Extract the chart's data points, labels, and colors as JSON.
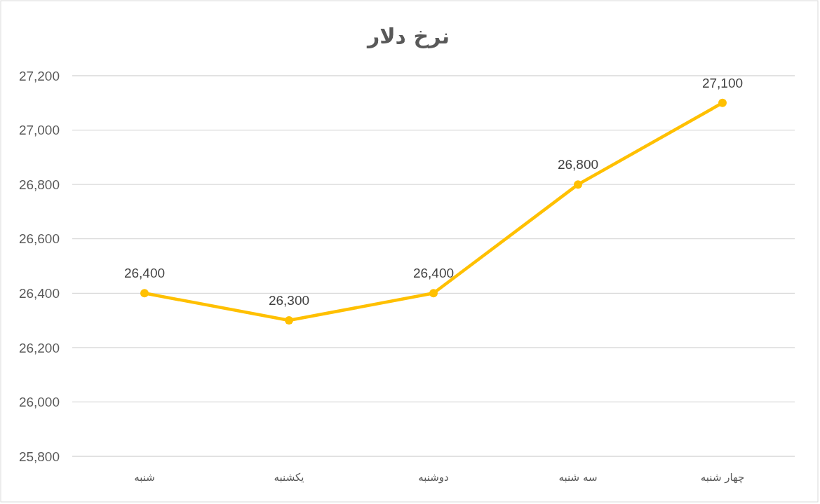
{
  "chart_data": {
    "type": "line",
    "title": "نرخ دلار",
    "categories": [
      "شنبه",
      "یکشنبه",
      "دوشنبه",
      "سه شنبه",
      "چهار شنبه"
    ],
    "series": [
      {
        "color": "#ffc000",
        "values": [
          26400,
          26300,
          26400,
          26800,
          27100
        ],
        "value_labels": [
          "26,400",
          "26,300",
          "26,400",
          "26,800",
          "27,100"
        ]
      }
    ],
    "ylim": [
      25800,
      27200
    ],
    "yticks": [
      {
        "value": 25800,
        "label": "25,800"
      },
      {
        "value": 26000,
        "label": "26,000"
      },
      {
        "value": 26200,
        "label": "26,200"
      },
      {
        "value": 26400,
        "label": "26,400"
      },
      {
        "value": 26600,
        "label": "26,600"
      },
      {
        "value": 26800,
        "label": "26,800"
      },
      {
        "value": 27000,
        "label": "27,000"
      },
      {
        "value": 27200,
        "label": "27,200"
      }
    ],
    "grid": "y",
    "marker": "circle"
  }
}
